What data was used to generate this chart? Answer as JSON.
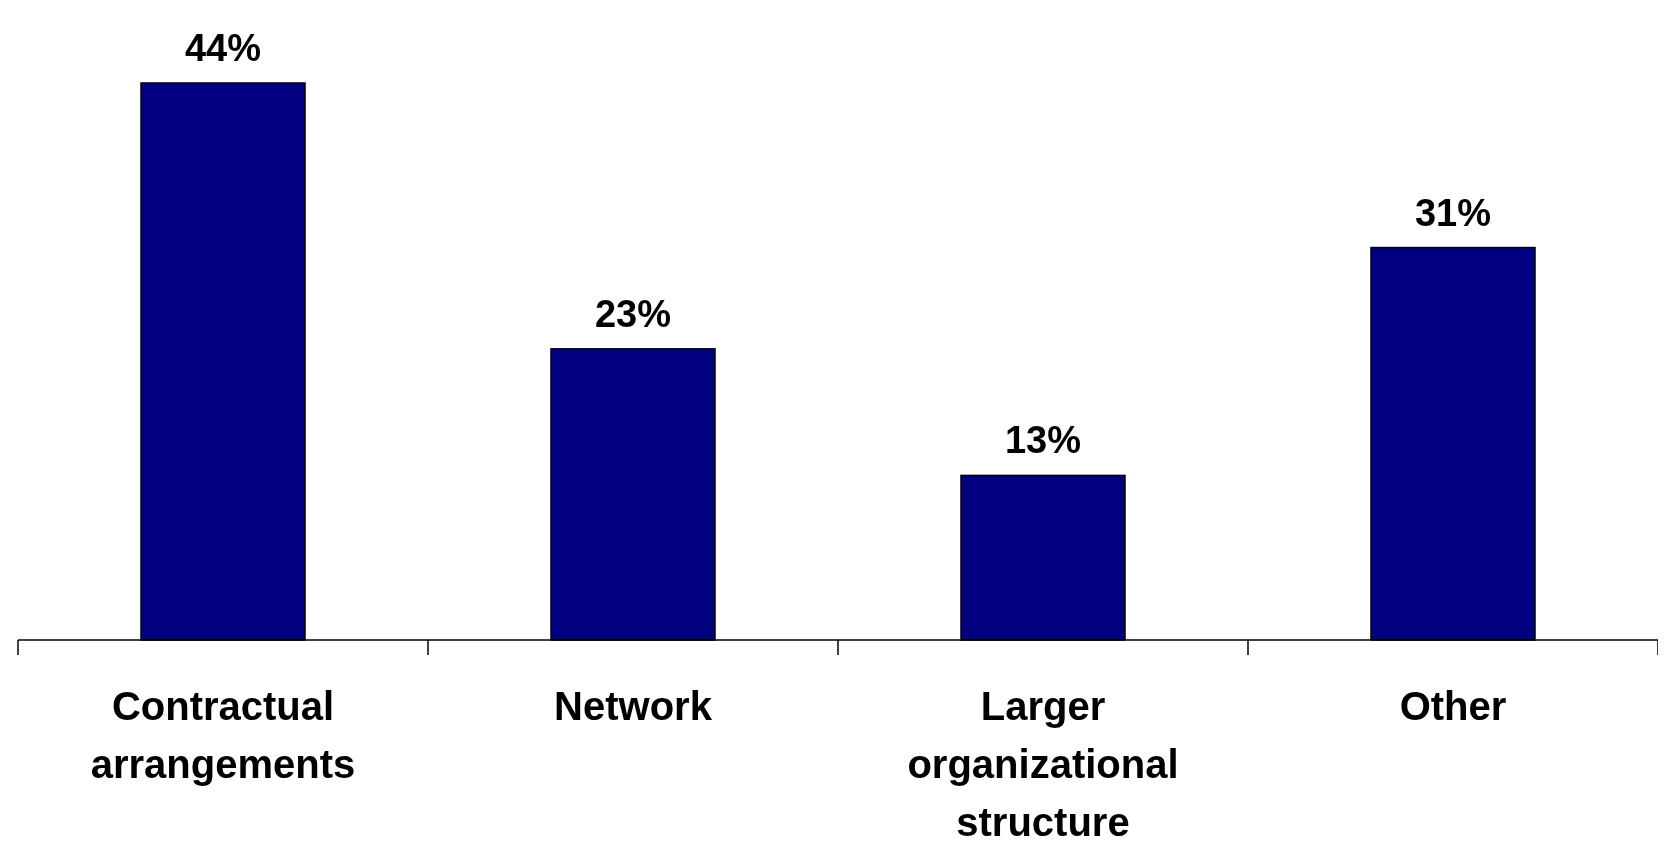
{
  "chart_data": {
    "type": "bar",
    "categories": [
      "Contractual arrangements",
      "Network",
      "Larger organizational structure",
      "Other"
    ],
    "values": [
      44,
      23,
      13,
      31
    ],
    "color": "#000080",
    "data_labels": true,
    "value_labels": [
      "44%",
      "23%",
      "13%",
      "31%"
    ]
  }
}
